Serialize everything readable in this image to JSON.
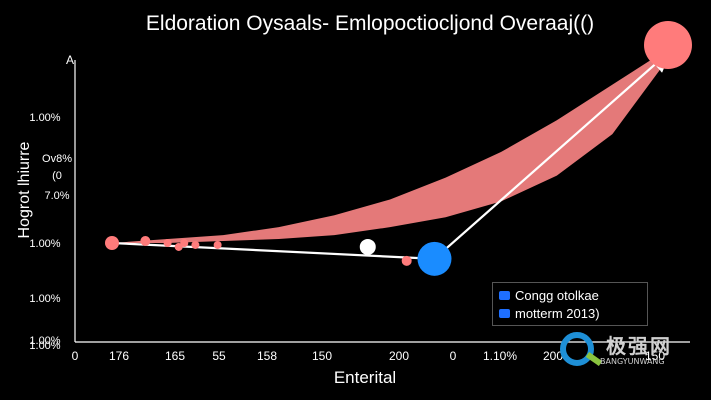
{
  "chart_data": {
    "type": "scatter",
    "title": "Eldoration Oysaals- Emlopoctiocljond Overaaj(()",
    "xlabel": "Enterital",
    "ylabel": "Hogrot lhiurre",
    "y_axis_arrow_label": "A",
    "x_tick_labels": [
      "176",
      "165",
      "55",
      "158",
      "150",
      "200",
      "0",
      "1.10%",
      "200",
      "150"
    ],
    "y_tick_labels": [
      "1.00%",
      "1.00%",
      "1.00%",
      "1.00%",
      "1.00%",
      "Ov8%",
      "(0",
      "7.0%"
    ],
    "legend_position": "bottom-right",
    "series": [
      {
        "name": "Congg otolkae",
        "color": "#ff7b7b",
        "points": [
          {
            "x": 0.0,
            "y": 0.0,
            "size": 7
          },
          {
            "x": 0.06,
            "y": 0.01,
            "size": 5
          },
          {
            "x": 0.1,
            "y": 0.0,
            "size": 4
          },
          {
            "x": 0.12,
            "y": -0.02,
            "size": 4
          },
          {
            "x": 0.13,
            "y": 0.0,
            "size": 4
          },
          {
            "x": 0.15,
            "y": -0.01,
            "size": 4
          },
          {
            "x": 0.19,
            "y": -0.01,
            "size": 4
          },
          {
            "x": 0.53,
            "y": -0.09,
            "size": 5
          },
          {
            "x": 1.0,
            "y": 1.0,
            "size": 24
          }
        ]
      },
      {
        "name": "motterm 2013)",
        "color": "#1a8cff",
        "points": [
          {
            "x": 0.58,
            "y": -0.08,
            "size": 17
          }
        ]
      }
    ],
    "extra_points": [
      {
        "x": 0.46,
        "y": -0.02,
        "color": "#ffffff",
        "size": 8
      }
    ],
    "band": {
      "x": [
        0.0,
        0.1,
        0.2,
        0.3,
        0.4,
        0.5,
        0.6,
        0.7,
        0.8,
        0.9,
        1.0
      ],
      "upper": [
        0.0,
        0.02,
        0.04,
        0.08,
        0.14,
        0.22,
        0.33,
        0.46,
        0.62,
        0.8,
        0.98
      ],
      "lower": [
        0.0,
        0.0,
        0.01,
        0.02,
        0.04,
        0.08,
        0.13,
        0.21,
        0.34,
        0.55,
        0.93
      ],
      "color": "#f08080"
    },
    "path": [
      [
        0.0,
        0.0
      ],
      [
        0.58,
        -0.08
      ],
      [
        1.0,
        0.96
      ]
    ],
    "grid": false
  },
  "legend": {
    "entries": [
      {
        "label": "Congg otolkae",
        "color": "#1e6fff"
      },
      {
        "label": "motterm 2013)",
        "color": "#1e6fff"
      }
    ]
  },
  "watermark": {
    "cn": "极强网",
    "en": "BANGYUNWANG"
  }
}
